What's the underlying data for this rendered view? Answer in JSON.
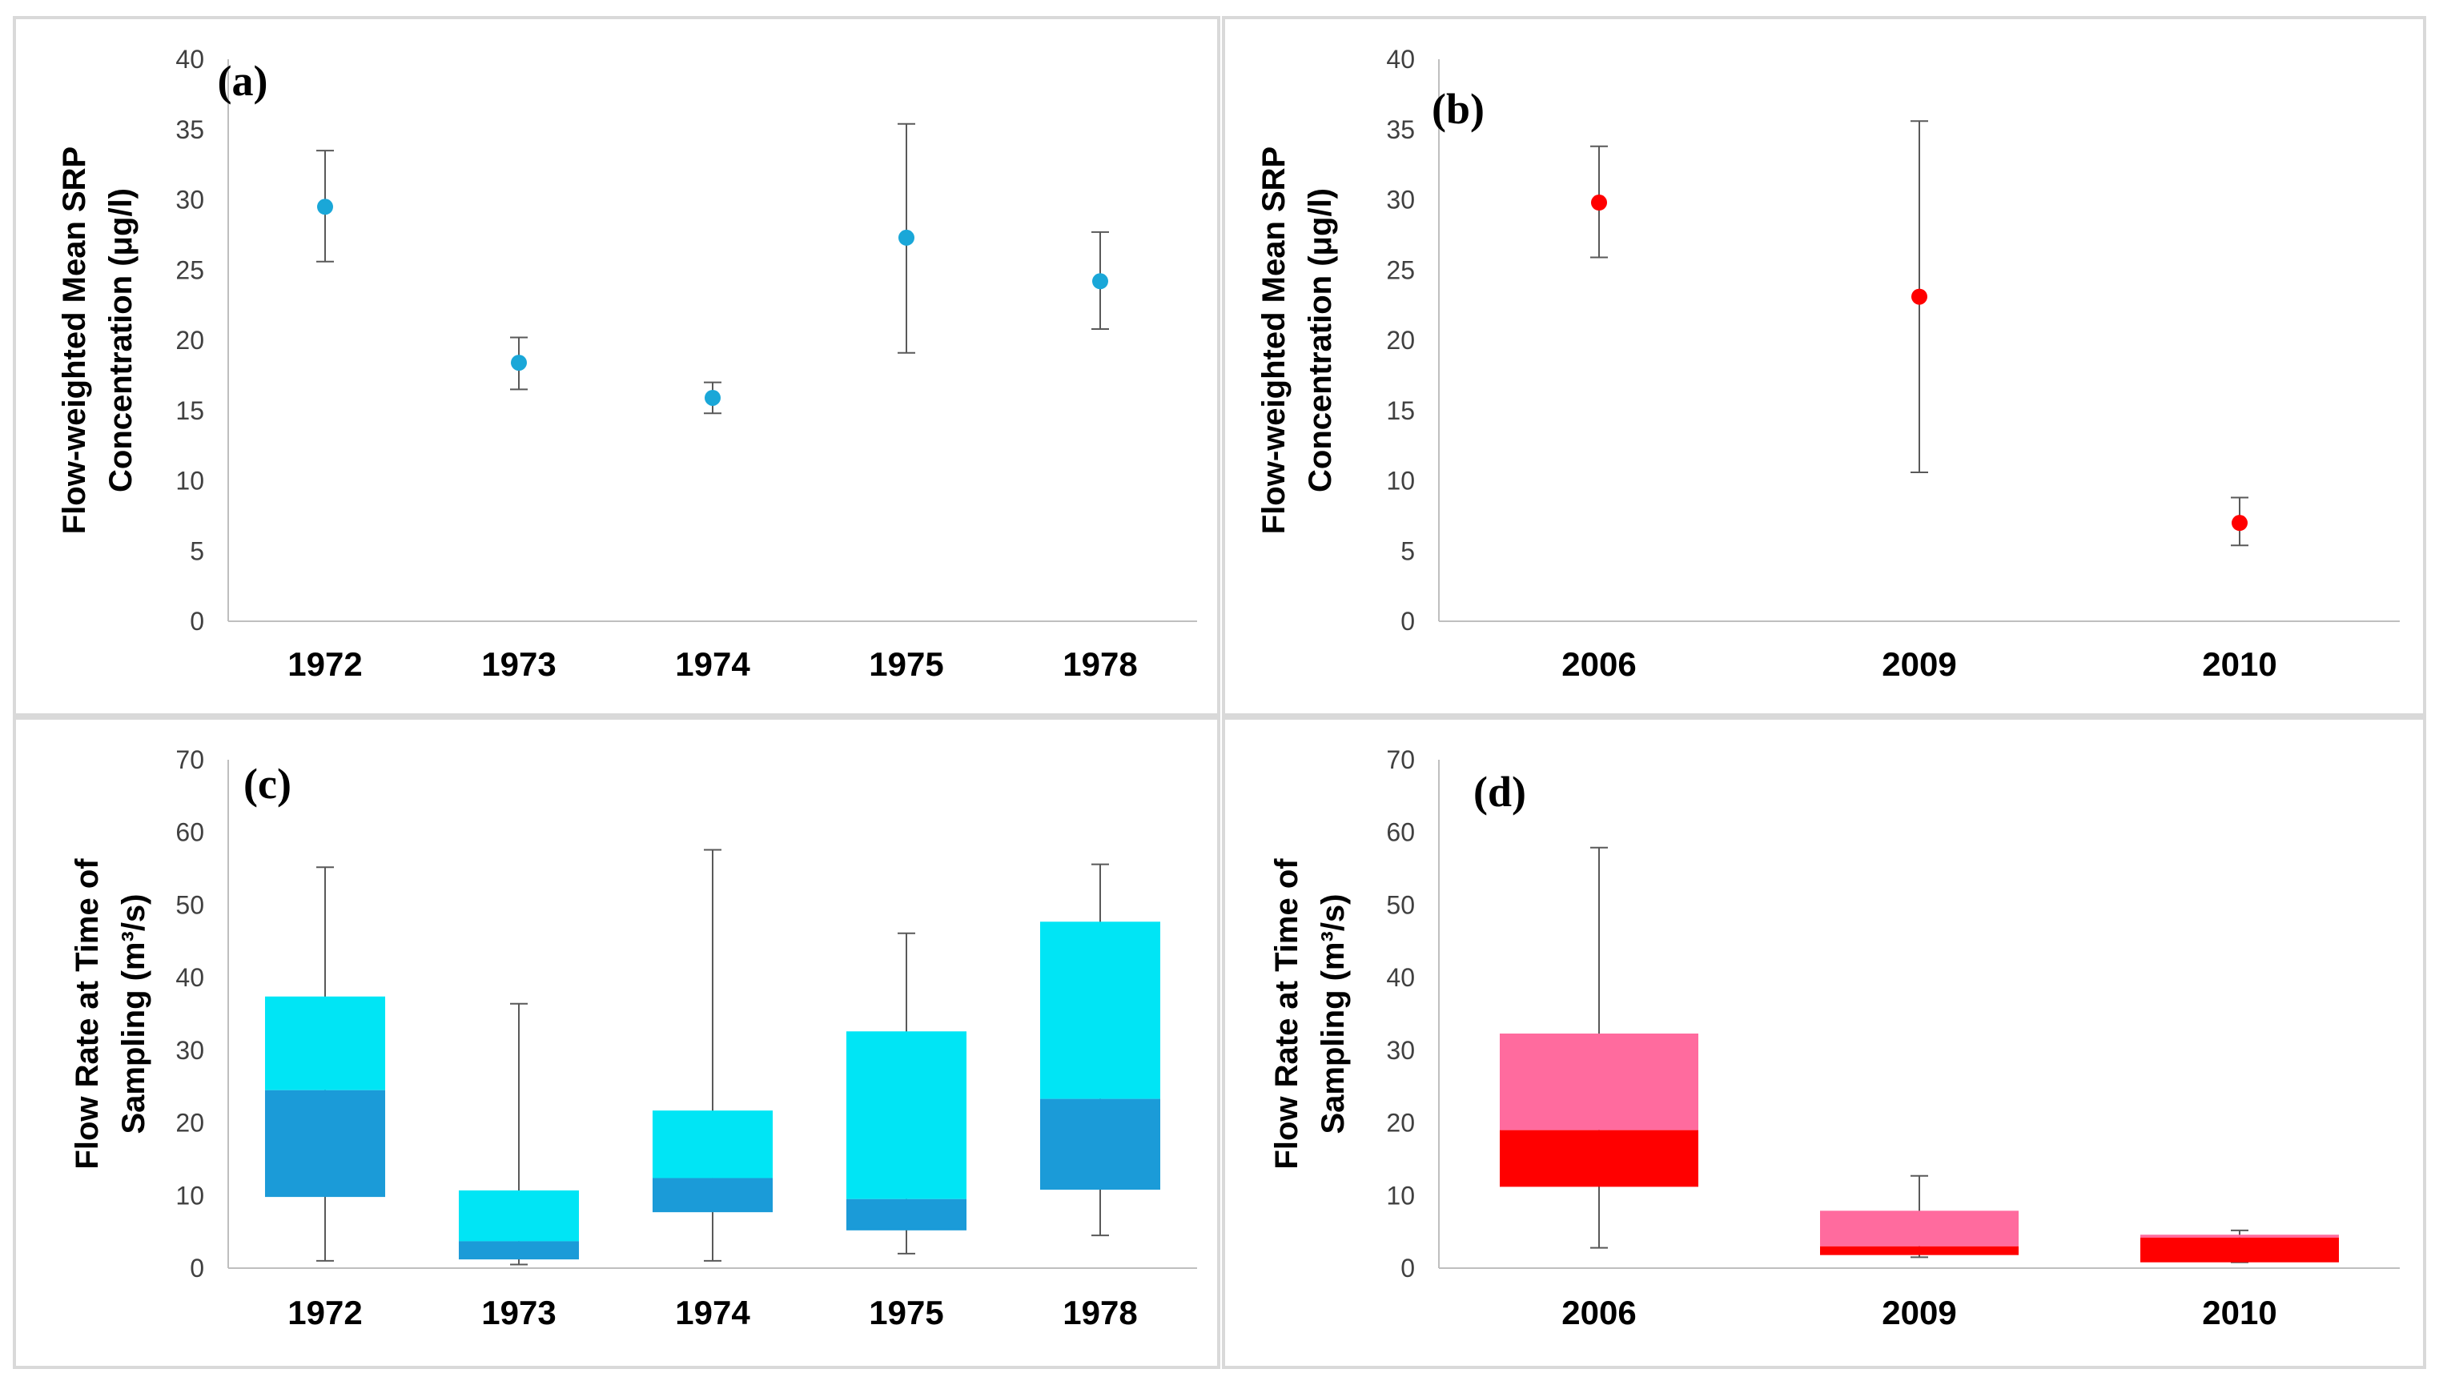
{
  "chart_data": [
    {
      "panel": "(a)",
      "type": "scatter",
      "ylabel_lines": [
        "Flow-weighted Mean SRP",
        "Concentration (μg/l)"
      ],
      "ylim": [
        0,
        40
      ],
      "yticks": [
        0,
        5,
        10,
        15,
        20,
        25,
        30,
        35,
        40
      ],
      "categories": [
        "1972",
        "1973",
        "1974",
        "1975",
        "1978"
      ],
      "values": [
        29.5,
        18.4,
        15.9,
        27.3,
        24.2
      ],
      "err_low": [
        25.6,
        16.5,
        14.8,
        19.1,
        20.8
      ],
      "err_high": [
        33.5,
        20.2,
        17.0,
        35.4,
        27.7
      ],
      "color": "#1aa7d8"
    },
    {
      "panel": "(b)",
      "type": "scatter",
      "ylabel_lines": [
        "Flow-weighted Mean SRP",
        "Concentration (μg/l)"
      ],
      "ylim": [
        0,
        40
      ],
      "yticks": [
        0,
        5,
        10,
        15,
        20,
        25,
        30,
        35,
        40
      ],
      "categories": [
        "2006",
        "2009",
        "2010"
      ],
      "values": [
        29.8,
        23.1,
        7.0
      ],
      "err_low": [
        25.9,
        10.6,
        5.4
      ],
      "err_high": [
        33.8,
        35.6,
        8.8
      ],
      "color": "#ff0000"
    },
    {
      "panel": "(c)",
      "type": "box",
      "ylabel_lines": [
        "Flow Rate at Time of",
        "Sampling (m³/s)"
      ],
      "ylim": [
        0,
        70
      ],
      "yticks": [
        0,
        10,
        20,
        30,
        40,
        50,
        60,
        70
      ],
      "categories": [
        "1972",
        "1973",
        "1974",
        "1975",
        "1978"
      ],
      "min": [
        1.0,
        0.5,
        1.0,
        2.0,
        4.5
      ],
      "q1": [
        9.8,
        1.2,
        7.7,
        5.2,
        10.8
      ],
      "median": [
        24.5,
        3.7,
        12.4,
        9.5,
        23.3
      ],
      "q3": [
        37.4,
        10.7,
        21.7,
        32.6,
        47.7
      ],
      "max": [
        55.2,
        36.4,
        57.6,
        46.1,
        55.6
      ],
      "color_lower": "#1b9bd8",
      "color_upper": "#00e5f5"
    },
    {
      "panel": "(d)",
      "type": "box",
      "ylabel_lines": [
        "Flow Rate at Time of",
        "Sampling (m³/s)"
      ],
      "ylim": [
        0,
        70
      ],
      "yticks": [
        0,
        10,
        20,
        30,
        40,
        50,
        60,
        70
      ],
      "categories": [
        "2006",
        "2009",
        "2010"
      ],
      "min": [
        2.8,
        1.5,
        0.8
      ],
      "q1": [
        11.2,
        1.8,
        0.8
      ],
      "median": [
        19.0,
        3.0,
        4.2
      ],
      "q3": [
        32.3,
        7.9,
        4.6
      ],
      "max": [
        57.9,
        12.7,
        5.2
      ],
      "color_lower": "#ff0000",
      "color_upper": "#ff6b9e"
    }
  ]
}
